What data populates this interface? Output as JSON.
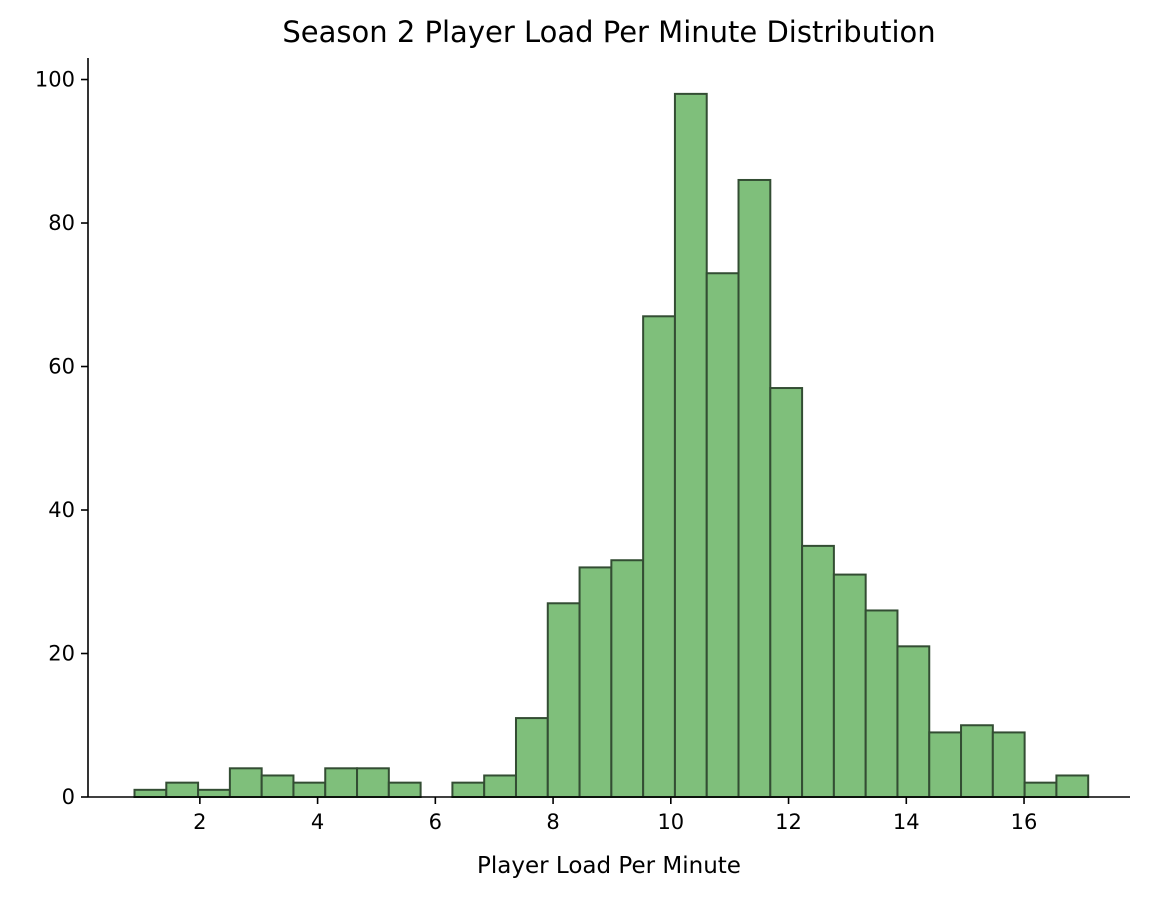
{
  "chart_data": {
    "type": "bar",
    "title": "Season 2 Player Load Per Minute Distribution",
    "xlabel": "Player Load Per Minute",
    "ylabel": "",
    "xlim": [
      0.1,
      17.8
    ],
    "ylim": [
      0,
      103
    ],
    "xticks": [
      2,
      4,
      6,
      8,
      10,
      12,
      14,
      16
    ],
    "yticks": [
      0,
      20,
      40,
      60,
      80,
      100
    ],
    "bar_color": "#7fbf7b",
    "edge_color": "#334d33",
    "bins": [
      {
        "x0": 0.89,
        "x1": 1.43,
        "count": 1
      },
      {
        "x0": 1.43,
        "x1": 1.97,
        "count": 2
      },
      {
        "x0": 1.97,
        "x1": 2.51,
        "count": 1
      },
      {
        "x0": 2.51,
        "x1": 3.05,
        "count": 4
      },
      {
        "x0": 3.05,
        "x1": 3.59,
        "count": 3
      },
      {
        "x0": 3.59,
        "x1": 4.13,
        "count": 2
      },
      {
        "x0": 4.13,
        "x1": 4.67,
        "count": 4
      },
      {
        "x0": 4.67,
        "x1": 5.21,
        "count": 4
      },
      {
        "x0": 5.21,
        "x1": 5.75,
        "count": 2
      },
      {
        "x0": 5.75,
        "x1": 6.29,
        "count": 0
      },
      {
        "x0": 6.29,
        "x1": 6.83,
        "count": 2
      },
      {
        "x0": 6.83,
        "x1": 7.37,
        "count": 3
      },
      {
        "x0": 7.37,
        "x1": 7.91,
        "count": 11
      },
      {
        "x0": 7.91,
        "x1": 8.45,
        "count": 27
      },
      {
        "x0": 8.45,
        "x1": 8.99,
        "count": 32
      },
      {
        "x0": 8.99,
        "x1": 9.53,
        "count": 33
      },
      {
        "x0": 9.53,
        "x1": 10.07,
        "count": 67
      },
      {
        "x0": 10.07,
        "x1": 10.61,
        "count": 98
      },
      {
        "x0": 10.61,
        "x1": 11.15,
        "count": 73
      },
      {
        "x0": 11.15,
        "x1": 11.69,
        "count": 86
      },
      {
        "x0": 11.69,
        "x1": 12.23,
        "count": 57
      },
      {
        "x0": 12.23,
        "x1": 12.77,
        "count": 35
      },
      {
        "x0": 12.77,
        "x1": 13.31,
        "count": 31
      },
      {
        "x0": 13.31,
        "x1": 13.85,
        "count": 26
      },
      {
        "x0": 13.85,
        "x1": 14.39,
        "count": 21
      },
      {
        "x0": 14.39,
        "x1": 14.93,
        "count": 9
      },
      {
        "x0": 14.93,
        "x1": 15.47,
        "count": 10
      },
      {
        "x0": 15.47,
        "x1": 16.01,
        "count": 9
      },
      {
        "x0": 16.01,
        "x1": 16.55,
        "count": 2
      },
      {
        "x0": 16.55,
        "x1": 17.09,
        "count": 3
      }
    ]
  }
}
